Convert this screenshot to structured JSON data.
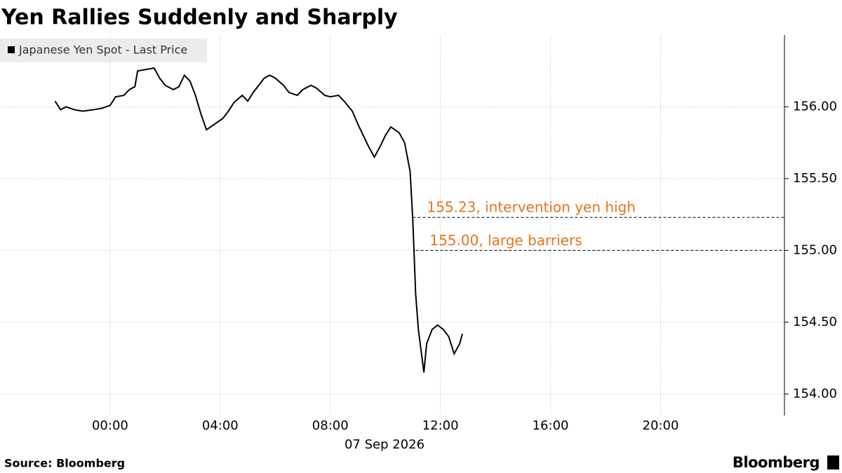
{
  "chart_data": {
    "type": "line",
    "title": "Yen Rallies Suddenly and Sharply",
    "x_label": "07 Sep 2026",
    "source": "Source: Bloomberg",
    "brand": "Bloomberg",
    "x": [
      -2.0,
      -1.8,
      -1.6,
      -1.3,
      -1.0,
      -0.6,
      -0.3,
      0.0,
      0.2,
      0.5,
      0.7,
      0.9,
      1.0,
      1.3,
      1.6,
      1.8,
      2.0,
      2.3,
      2.5,
      2.7,
      2.9,
      3.1,
      3.3,
      3.5,
      3.8,
      4.1,
      4.3,
      4.5,
      4.8,
      5.0,
      5.2,
      5.4,
      5.6,
      5.8,
      6.0,
      6.3,
      6.5,
      6.8,
      7.0,
      7.3,
      7.5,
      7.8,
      8.0,
      8.3,
      8.5,
      8.8,
      9.0,
      9.2,
      9.4,
      9.6,
      9.8,
      10.0,
      10.2,
      10.5,
      10.7,
      10.9,
      11.0,
      11.1,
      11.2,
      11.3,
      11.4,
      11.5,
      11.7,
      11.9,
      12.1,
      12.3,
      12.5,
      12.7,
      12.8
    ],
    "series": [
      {
        "name": "Japanese Yen Spot - Last Price",
        "color": "#000000",
        "values": [
          156.04,
          155.98,
          156.0,
          155.98,
          155.97,
          155.98,
          155.99,
          156.01,
          156.07,
          156.08,
          156.12,
          156.14,
          156.25,
          156.26,
          156.27,
          156.2,
          156.15,
          156.12,
          156.14,
          156.22,
          156.18,
          156.08,
          155.95,
          155.84,
          155.88,
          155.92,
          155.97,
          156.03,
          156.08,
          156.04,
          156.1,
          156.15,
          156.2,
          156.22,
          156.2,
          156.15,
          156.1,
          156.08,
          156.12,
          156.15,
          156.13,
          156.08,
          156.07,
          156.08,
          156.04,
          155.97,
          155.88,
          155.8,
          155.72,
          155.65,
          155.72,
          155.8,
          155.86,
          155.82,
          155.75,
          155.55,
          155.2,
          154.7,
          154.45,
          154.3,
          154.15,
          154.35,
          154.45,
          154.48,
          154.45,
          154.4,
          154.28,
          154.35,
          154.42
        ]
      }
    ],
    "xlim": [
      -4,
      24.5
    ],
    "xticks": [
      {
        "value": 0,
        "label": "00:00"
      },
      {
        "value": 4,
        "label": "04:00"
      },
      {
        "value": 8,
        "label": "08:00"
      },
      {
        "value": 12,
        "label": "12:00"
      },
      {
        "value": 16,
        "label": "16:00"
      },
      {
        "value": 20,
        "label": "20:00"
      }
    ],
    "ylim": [
      153.85,
      156.5
    ],
    "yticks": [
      {
        "value": 154,
        "label": "154.00"
      },
      {
        "value": 154.5,
        "label": "154.50"
      },
      {
        "value": 155,
        "label": "155.00"
      },
      {
        "value": 155.5,
        "label": "155.50"
      },
      {
        "value": 156,
        "label": "156.00"
      }
    ],
    "grid": true,
    "annotations": [
      {
        "value": 155.23,
        "text": "155.23, intervention yen high",
        "color": "#e8731e"
      },
      {
        "value": 155.0,
        "text": "155.00, large barriers",
        "color": "#e8731e"
      }
    ]
  }
}
